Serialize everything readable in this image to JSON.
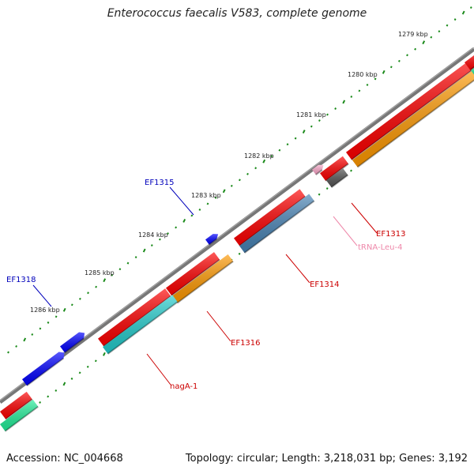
{
  "title": "Enterococcus faecalis V583, complete genome",
  "footer": {
    "accession": "Accession: NC_004668",
    "stats": "Topology: circular; Length: 3,218,031 bp; Genes: 3,192"
  },
  "scale": {
    "labels": [
      "1279 kbp",
      "1280 kbp",
      "1281 kbp",
      "1282 kbp",
      "1283 kbp",
      "1284 kbp",
      "1285 kbp",
      "1286 kbp"
    ]
  },
  "colors": {
    "backbone": "#777777",
    "tick": "#1a8a1a",
    "label_red": "#cc0000",
    "label_blue": "#0000bb",
    "label_pink": "#ee88aa",
    "red": "#ff0000",
    "orange": "#ff9900",
    "steelblue": "#4682b4",
    "cyan": "#22cccc",
    "blue": "#0000ff",
    "gray": "#555555",
    "pink": "#ffaacc",
    "green": "#22ee99"
  },
  "features": {
    "outer_labelled": [
      {
        "name": "EF1315",
        "color": "blue"
      },
      {
        "name": "EF1318",
        "color": "blue"
      }
    ],
    "inner_labelled": [
      {
        "name": "EF1313",
        "color": "red"
      },
      {
        "name": "tRNA-Leu-4",
        "color": "pink"
      },
      {
        "name": "EF1314",
        "color": "red"
      },
      {
        "name": "EF1316",
        "color": "red"
      },
      {
        "name": "nagA-1",
        "color": "red"
      }
    ]
  }
}
